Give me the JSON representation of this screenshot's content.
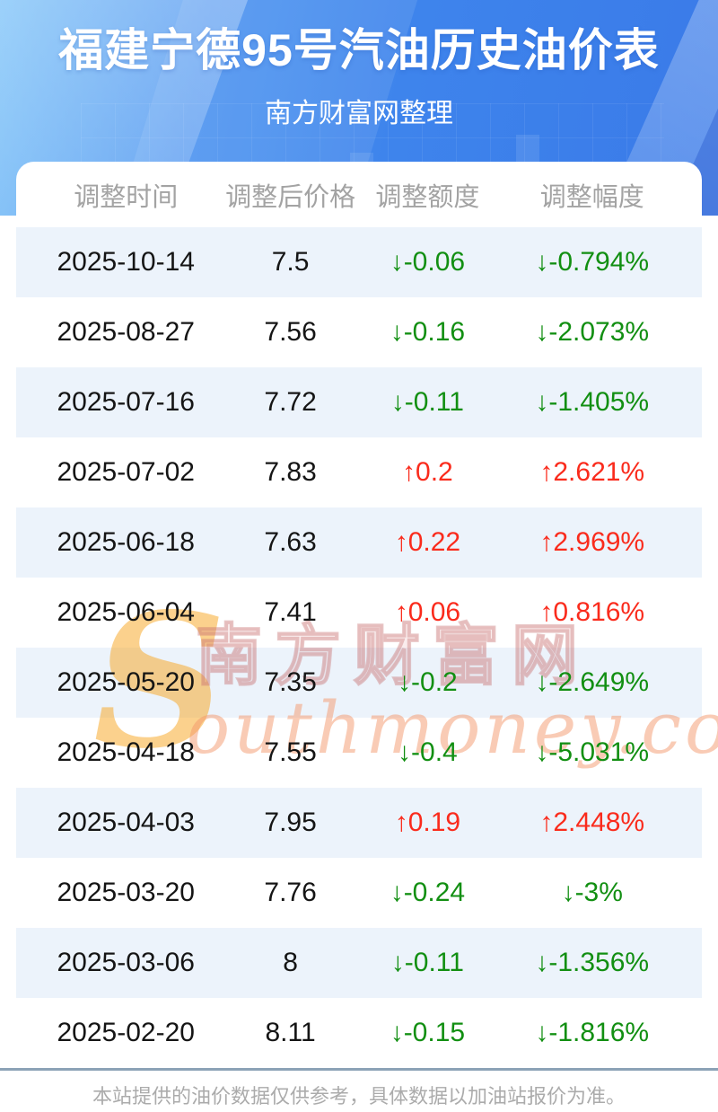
{
  "header": {
    "title": "福建宁德95号汽油历史油价表",
    "subtitle": "南方财富网整理"
  },
  "table": {
    "columns": [
      "调整时间",
      "调整后价格",
      "调整额度",
      "调整幅度"
    ],
    "rows": [
      {
        "date": "2025-10-14",
        "price": "7.5",
        "arrow": "↓",
        "change": "-0.06",
        "percent": "-0.794%",
        "trend": "down"
      },
      {
        "date": "2025-08-27",
        "price": "7.56",
        "arrow": "↓",
        "change": "-0.16",
        "percent": "-2.073%",
        "trend": "down"
      },
      {
        "date": "2025-07-16",
        "price": "7.72",
        "arrow": "↓",
        "change": "-0.11",
        "percent": "-1.405%",
        "trend": "down"
      },
      {
        "date": "2025-07-02",
        "price": "7.83",
        "arrow": "↑",
        "change": "0.2",
        "percent": "2.621%",
        "trend": "up"
      },
      {
        "date": "2025-06-18",
        "price": "7.63",
        "arrow": "↑",
        "change": "0.22",
        "percent": "2.969%",
        "trend": "up"
      },
      {
        "date": "2025-06-04",
        "price": "7.41",
        "arrow": "↑",
        "change": "0.06",
        "percent": "0.816%",
        "trend": "up"
      },
      {
        "date": "2025-05-20",
        "price": "7.35",
        "arrow": "↓",
        "change": "-0.2",
        "percent": "-2.649%",
        "trend": "down"
      },
      {
        "date": "2025-04-18",
        "price": "7.55",
        "arrow": "↓",
        "change": "-0.4",
        "percent": "-5.031%",
        "trend": "down"
      },
      {
        "date": "2025-04-03",
        "price": "7.95",
        "arrow": "↑",
        "change": "0.19",
        "percent": "2.448%",
        "trend": "up"
      },
      {
        "date": "2025-03-20",
        "price": "7.76",
        "arrow": "↓",
        "change": "-0.24",
        "percent": "-3%",
        "trend": "down"
      },
      {
        "date": "2025-03-06",
        "price": "8",
        "arrow": "↓",
        "change": "-0.11",
        "percent": "-1.356%",
        "trend": "down"
      },
      {
        "date": "2025-02-20",
        "price": "8.11",
        "arrow": "↓",
        "change": "-0.15",
        "percent": "-1.816%",
        "trend": "down"
      }
    ]
  },
  "watermark": {
    "logo": "S",
    "site_cn": "南方财富网",
    "site_en": "outhmoney.com"
  },
  "footer": {
    "note": "本站提供的油价数据仅供参考，具体数据以加油站报价为准。"
  },
  "colors": {
    "up_red": "#fa2b1c",
    "down_green": "#128f12",
    "stripe": "#ecf3fb",
    "header_blue": "#3e84ec",
    "column_header_text": "#a3a3a3",
    "divider": "#8ca2b6"
  }
}
